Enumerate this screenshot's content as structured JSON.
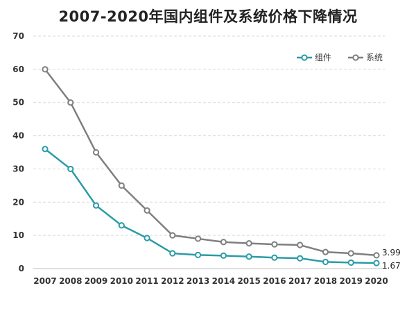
{
  "chart_data": {
    "type": "line",
    "title": "2007-2020年国内组件及系统价格下降情况",
    "xlabel": "",
    "ylabel": "",
    "ylim": [
      0,
      70
    ],
    "yticks": [
      "0",
      "10",
      "20",
      "30",
      "40",
      "50",
      "60",
      "70"
    ],
    "grid": "horizontal, dashed",
    "legend_position": "top-right",
    "categories": [
      "2007",
      "2008",
      "2009",
      "2010",
      "2011",
      "2012",
      "2013",
      "2014",
      "2015",
      "2016",
      "2017",
      "2018",
      "2019",
      "2020"
    ],
    "series": [
      {
        "name": "组件",
        "color": "#2A9CA6",
        "values": [
          36,
          30,
          19,
          13,
          9.2,
          4.6,
          4.1,
          3.9,
          3.6,
          3.3,
          3.1,
          2.0,
          1.8,
          1.67
        ],
        "end_label": "1.67"
      },
      {
        "name": "系统",
        "color": "#7F7F7F",
        "values": [
          60,
          50,
          35,
          25,
          17.5,
          10,
          9.0,
          8.0,
          7.6,
          7.3,
          7.1,
          5.0,
          4.6,
          3.99
        ],
        "end_label": "3.99"
      }
    ]
  }
}
